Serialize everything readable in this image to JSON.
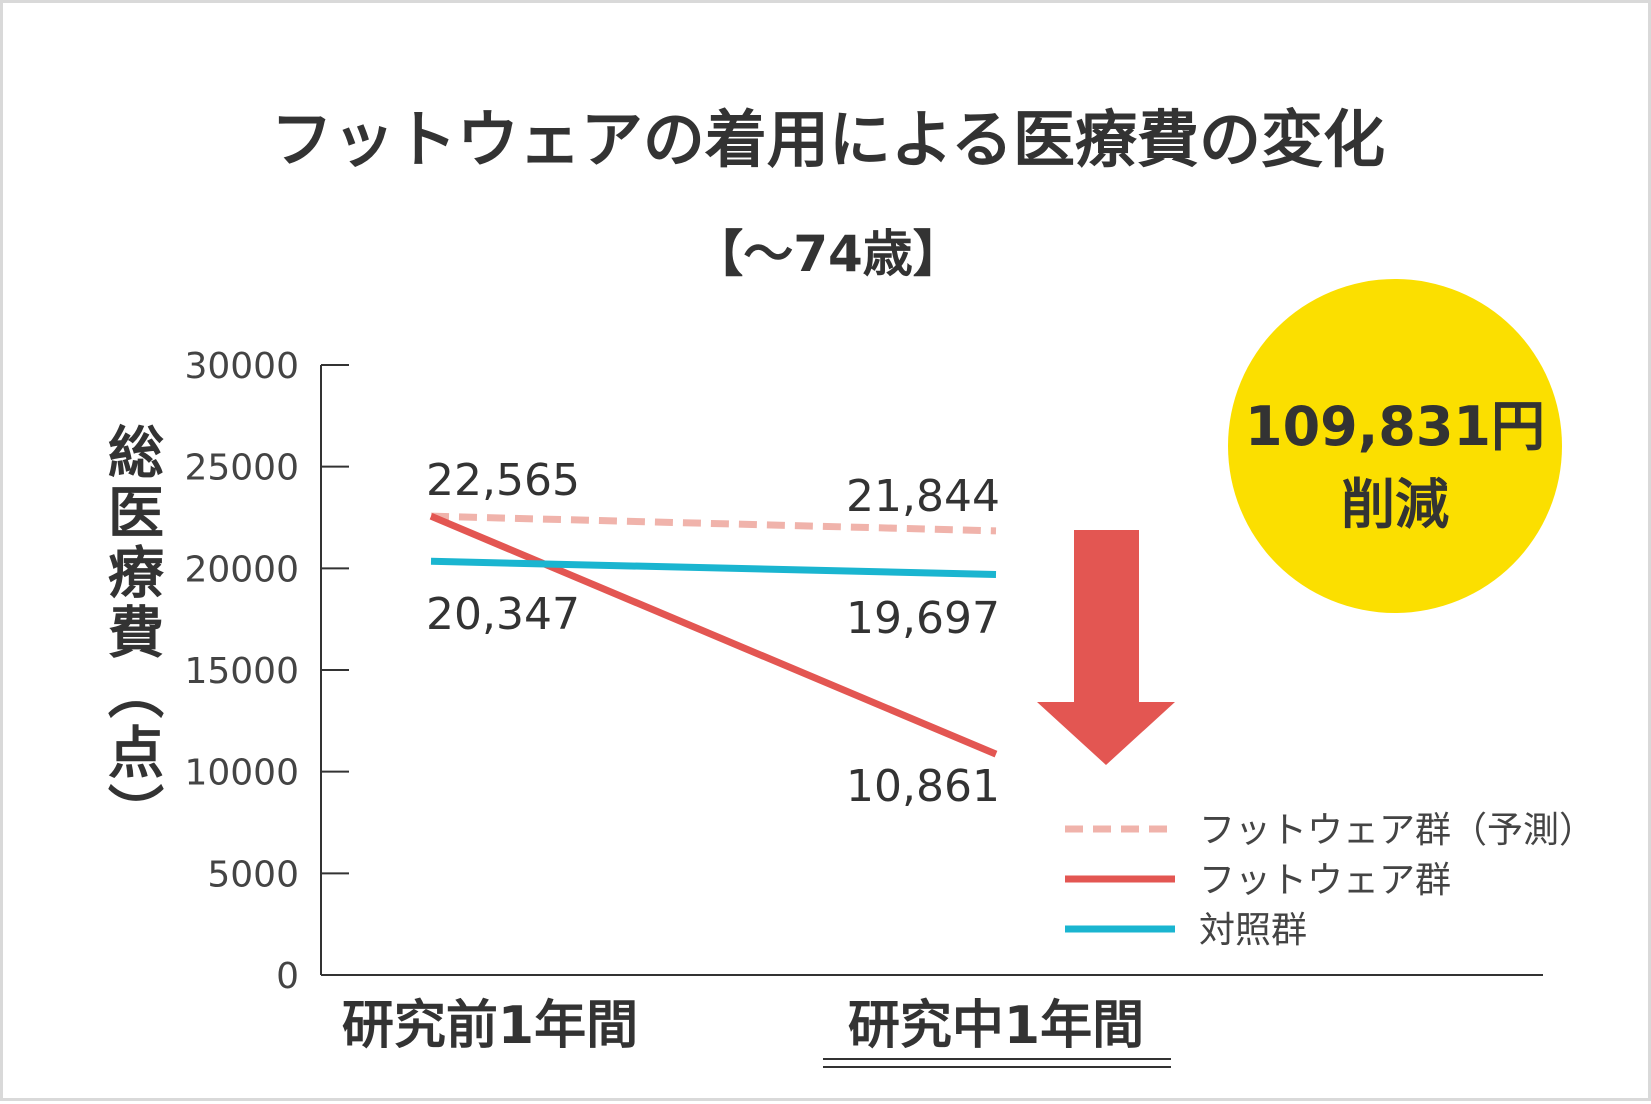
{
  "chart_data": {
    "type": "line",
    "title": "フットウェアの着用による医療費の変化",
    "subtitle": "【〜74歳】",
    "ylabel": "総医療費（点）",
    "ylim": [
      0,
      30000
    ],
    "yticks": [
      "0",
      "5000",
      "10000",
      "15000",
      "20000",
      "25000",
      "30000"
    ],
    "categories": [
      "研究前1年間",
      "研究中1年間"
    ],
    "series": [
      {
        "name": "フットウェア群（予測）",
        "values": [
          22565,
          21844
        ],
        "labels": [
          "22,565",
          "21,844"
        ],
        "color": "#f0b3ab",
        "style": "dashed"
      },
      {
        "name": "フットウェア群",
        "values": [
          22565,
          10861
        ],
        "labels": [
          "",
          "10,861"
        ],
        "color": "#e35652",
        "style": "solid"
      },
      {
        "name": "対照群",
        "values": [
          20347,
          19697
        ],
        "labels": [
          "20,347",
          "19,697"
        ],
        "color": "#1ab5d0",
        "style": "solid"
      }
    ],
    "badge": {
      "line1": "109,831円",
      "line2": "削減",
      "color": "#fbdf00"
    },
    "arrow_color": "#e35652",
    "grid": false,
    "legend_position": "bottom-right"
  }
}
